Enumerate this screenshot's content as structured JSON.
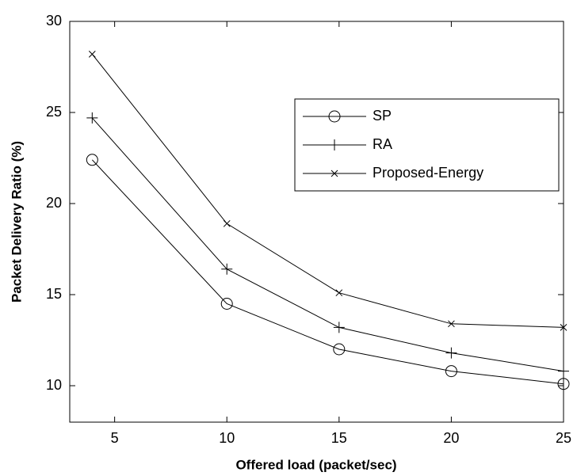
{
  "chart_data": {
    "type": "line",
    "xlabel": "Offered load (packet/sec)",
    "ylabel": "Packet Delivery Ratio (%)",
    "x": [
      4,
      10,
      15,
      20,
      25
    ],
    "series": [
      {
        "name": "SP",
        "color": "#000000",
        "marker": "o",
        "values": [
          22.4,
          14.5,
          12.0,
          10.8,
          10.1
        ]
      },
      {
        "name": "RA",
        "color": "#000000",
        "marker": "+",
        "values": [
          24.7,
          16.4,
          13.2,
          11.8,
          10.8
        ]
      },
      {
        "name": "Proposed-Energy",
        "color": "#000000",
        "marker": "x",
        "values": [
          28.2,
          18.9,
          15.1,
          13.4,
          13.2
        ]
      }
    ],
    "xlim": [
      3,
      25
    ],
    "xticks": [
      5,
      10,
      15,
      20,
      25
    ],
    "ylim": [
      8,
      30
    ],
    "yticks": [
      10,
      15,
      20,
      25,
      30
    ],
    "grid": false,
    "legend": "upper right"
  }
}
